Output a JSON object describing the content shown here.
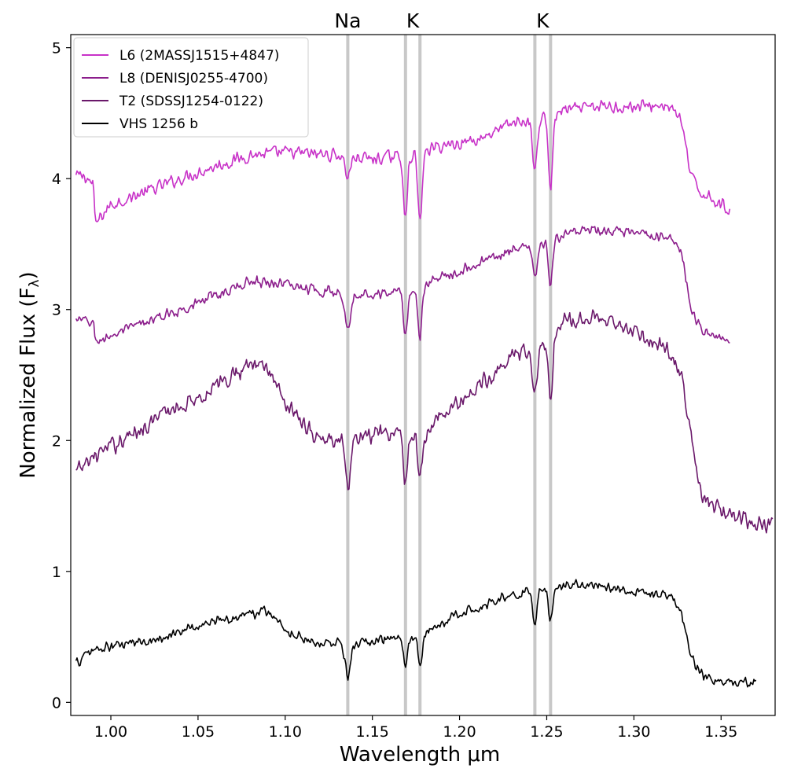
{
  "chart_data": {
    "type": "line",
    "xlabel": "Wavelength μm",
    "ylabel": "Normalized Flux (F",
    "ylabel_sub": "λ",
    "ylabel_close": ")",
    "xlim": [
      0.977,
      1.381
    ],
    "ylim": [
      -0.1,
      5.1
    ],
    "xticks": [
      1.0,
      1.05,
      1.1,
      1.15,
      1.2,
      1.25,
      1.3,
      1.35
    ],
    "xtick_labels": [
      "1.00",
      "1.05",
      "1.10",
      "1.15",
      "1.20",
      "1.25",
      "1.30",
      "1.35"
    ],
    "yticks": [
      0,
      1,
      2,
      3,
      4,
      5
    ],
    "ytick_labels": [
      "0",
      "1",
      "2",
      "3",
      "4",
      "5"
    ],
    "grid": false,
    "legend_position": "top-left",
    "line_markers": [
      {
        "label": "Na",
        "x": [
          1.1359
        ]
      },
      {
        "label": "K",
        "x": [
          1.169,
          1.1773
        ]
      },
      {
        "label": "K",
        "x": [
          1.2432,
          1.2522
        ]
      }
    ],
    "marker_color": "#c8c8c8",
    "series": [
      {
        "name": "L6 (2MASSJ1515+4847)",
        "color": "#c832c8",
        "x_range": [
          0.98,
          1.355
        ],
        "noise": 0.06,
        "points": [
          [
            0.98,
            4.02
          ],
          [
            0.985,
            4.02
          ],
          [
            0.99,
            3.95
          ],
          [
            0.991,
            3.65
          ],
          [
            0.995,
            3.72
          ],
          [
            1.0,
            3.8
          ],
          [
            1.05,
            4.05
          ],
          [
            1.08,
            4.18
          ],
          [
            1.1,
            4.2
          ],
          [
            1.13,
            4.18
          ],
          [
            1.15,
            4.15
          ],
          [
            1.17,
            4.18
          ],
          [
            1.19,
            4.25
          ],
          [
            1.21,
            4.3
          ],
          [
            1.23,
            4.42
          ],
          [
            1.245,
            4.45
          ],
          [
            1.26,
            4.52
          ],
          [
            1.28,
            4.55
          ],
          [
            1.3,
            4.55
          ],
          [
            1.32,
            4.56
          ],
          [
            1.327,
            4.45
          ],
          [
            1.333,
            4.0
          ],
          [
            1.338,
            3.9
          ],
          [
            1.345,
            3.85
          ],
          [
            1.355,
            3.75
          ]
        ],
        "dips": [
          [
            1.169,
            0.45,
            0.0012
          ],
          [
            1.1773,
            0.55,
            0.0012
          ],
          [
            1.2432,
            0.4,
            0.0012
          ],
          [
            1.2522,
            0.55,
            0.0012
          ],
          [
            1.1359,
            0.15,
            0.0015
          ]
        ]
      },
      {
        "name": "L8 (DENISJ0255-4700)",
        "color": "#8c1e8c",
        "x_range": [
          0.98,
          1.355
        ],
        "noise": 0.05,
        "points": [
          [
            0.98,
            2.92
          ],
          [
            0.99,
            2.9
          ],
          [
            0.991,
            2.75
          ],
          [
            1.0,
            2.8
          ],
          [
            1.05,
            3.05
          ],
          [
            1.08,
            3.22
          ],
          [
            1.1,
            3.2
          ],
          [
            1.13,
            3.12
          ],
          [
            1.15,
            3.12
          ],
          [
            1.17,
            3.15
          ],
          [
            1.19,
            3.25
          ],
          [
            1.21,
            3.35
          ],
          [
            1.23,
            3.45
          ],
          [
            1.245,
            3.48
          ],
          [
            1.26,
            3.58
          ],
          [
            1.28,
            3.6
          ],
          [
            1.3,
            3.58
          ],
          [
            1.32,
            3.55
          ],
          [
            1.327,
            3.45
          ],
          [
            1.333,
            3.0
          ],
          [
            1.338,
            2.85
          ],
          [
            1.345,
            2.82
          ],
          [
            1.355,
            2.75
          ]
        ],
        "dips": [
          [
            1.169,
            0.35,
            0.0012
          ],
          [
            1.1773,
            0.4,
            0.0012
          ],
          [
            1.2432,
            0.25,
            0.0012
          ],
          [
            1.2522,
            0.35,
            0.0012
          ],
          [
            1.1359,
            0.25,
            0.0015
          ]
        ]
      },
      {
        "name": "T2 (SDSSJ1254-0122)",
        "color": "#6a186a",
        "x_range": [
          0.98,
          1.38
        ],
        "noise": 0.08,
        "points": [
          [
            0.98,
            1.75
          ],
          [
            0.99,
            1.88
          ],
          [
            1.0,
            1.95
          ],
          [
            1.03,
            2.2
          ],
          [
            1.06,
            2.4
          ],
          [
            1.08,
            2.6
          ],
          [
            1.09,
            2.55
          ],
          [
            1.1,
            2.3
          ],
          [
            1.12,
            2.0
          ],
          [
            1.14,
            2.02
          ],
          [
            1.16,
            2.05
          ],
          [
            1.18,
            2.05
          ],
          [
            1.19,
            2.2
          ],
          [
            1.21,
            2.4
          ],
          [
            1.23,
            2.65
          ],
          [
            1.245,
            2.7
          ],
          [
            1.25,
            2.75
          ],
          [
            1.26,
            2.9
          ],
          [
            1.28,
            2.95
          ],
          [
            1.3,
            2.82
          ],
          [
            1.32,
            2.7
          ],
          [
            1.327,
            2.5
          ],
          [
            1.333,
            2.0
          ],
          [
            1.338,
            1.6
          ],
          [
            1.345,
            1.5
          ],
          [
            1.36,
            1.4
          ],
          [
            1.38,
            1.35
          ]
        ],
        "dips": [
          [
            1.169,
            0.35,
            0.0012
          ],
          [
            1.1773,
            0.35,
            0.0012
          ],
          [
            1.2432,
            0.35,
            0.0012
          ],
          [
            1.2522,
            0.45,
            0.0012
          ],
          [
            1.1359,
            0.4,
            0.0015
          ]
        ]
      },
      {
        "name": "VHS 1256 b",
        "color": "#000000",
        "x_range": [
          0.98,
          1.37
        ],
        "noise": 0.05,
        "points": [
          [
            0.98,
            0.3
          ],
          [
            0.99,
            0.4
          ],
          [
            1.0,
            0.42
          ],
          [
            1.03,
            0.5
          ],
          [
            1.06,
            0.62
          ],
          [
            1.08,
            0.68
          ],
          [
            1.09,
            0.7
          ],
          [
            1.1,
            0.55
          ],
          [
            1.12,
            0.45
          ],
          [
            1.14,
            0.45
          ],
          [
            1.16,
            0.48
          ],
          [
            1.18,
            0.52
          ],
          [
            1.2,
            0.68
          ],
          [
            1.22,
            0.78
          ],
          [
            1.24,
            0.85
          ],
          [
            1.26,
            0.9
          ],
          [
            1.28,
            0.9
          ],
          [
            1.3,
            0.85
          ],
          [
            1.32,
            0.82
          ],
          [
            1.327,
            0.7
          ],
          [
            1.333,
            0.35
          ],
          [
            1.34,
            0.2
          ],
          [
            1.35,
            0.15
          ],
          [
            1.37,
            0.15
          ]
        ],
        "dips": [
          [
            1.169,
            0.25,
            0.0012
          ],
          [
            1.1773,
            0.25,
            0.0012
          ],
          [
            1.2432,
            0.25,
            0.0012
          ],
          [
            1.2522,
            0.25,
            0.0012
          ],
          [
            1.1359,
            0.25,
            0.0015
          ]
        ]
      }
    ]
  }
}
